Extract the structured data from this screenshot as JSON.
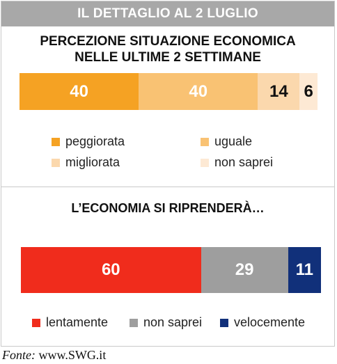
{
  "header": {
    "title": "IL DETTAGLIO AL 2 LUGLIO"
  },
  "source": {
    "prefix": "Fonte:",
    "text": " www.SWG.it"
  },
  "chart_data": [
    {
      "type": "bar",
      "orientation": "horizontal-stacked",
      "title_line1": "PERCEZIONE SITUAZIONE ECONOMICA",
      "title_line2": "NELLE ULTIME 2 SETTIMANE",
      "series": [
        {
          "name": "peggiorata",
          "value": 40,
          "color": "#f5a223",
          "label": "40",
          "label_color": "#ffffff"
        },
        {
          "name": "uguale",
          "value": 40,
          "color": "#f9c273",
          "label": "40",
          "label_color": "#ffffff"
        },
        {
          "name": "migliorata",
          "value": 14,
          "color": "#fbd8ad",
          "label": "14",
          "label_color": "#111111"
        },
        {
          "name": "non saprei",
          "value": 6,
          "color": "#fde9d4",
          "label": "6",
          "label_color": "#111111"
        }
      ],
      "legend_placement": "bottom"
    },
    {
      "type": "bar",
      "orientation": "horizontal-stacked",
      "title": "L’ECONOMIA SI RIPRENDERÀ…",
      "series": [
        {
          "name": "lentamente",
          "value": 60,
          "color": "#f02c1c",
          "label": "60",
          "label_color": "#ffffff"
        },
        {
          "name": "non saprei",
          "value": 29,
          "color": "#9e9e9e",
          "label": "29",
          "label_color": "#ffffff"
        },
        {
          "name": "velocemente",
          "value": 11,
          "color": "#11307a",
          "label": "11",
          "label_color": "#ffffff"
        }
      ],
      "legend_placement": "bottom"
    }
  ]
}
